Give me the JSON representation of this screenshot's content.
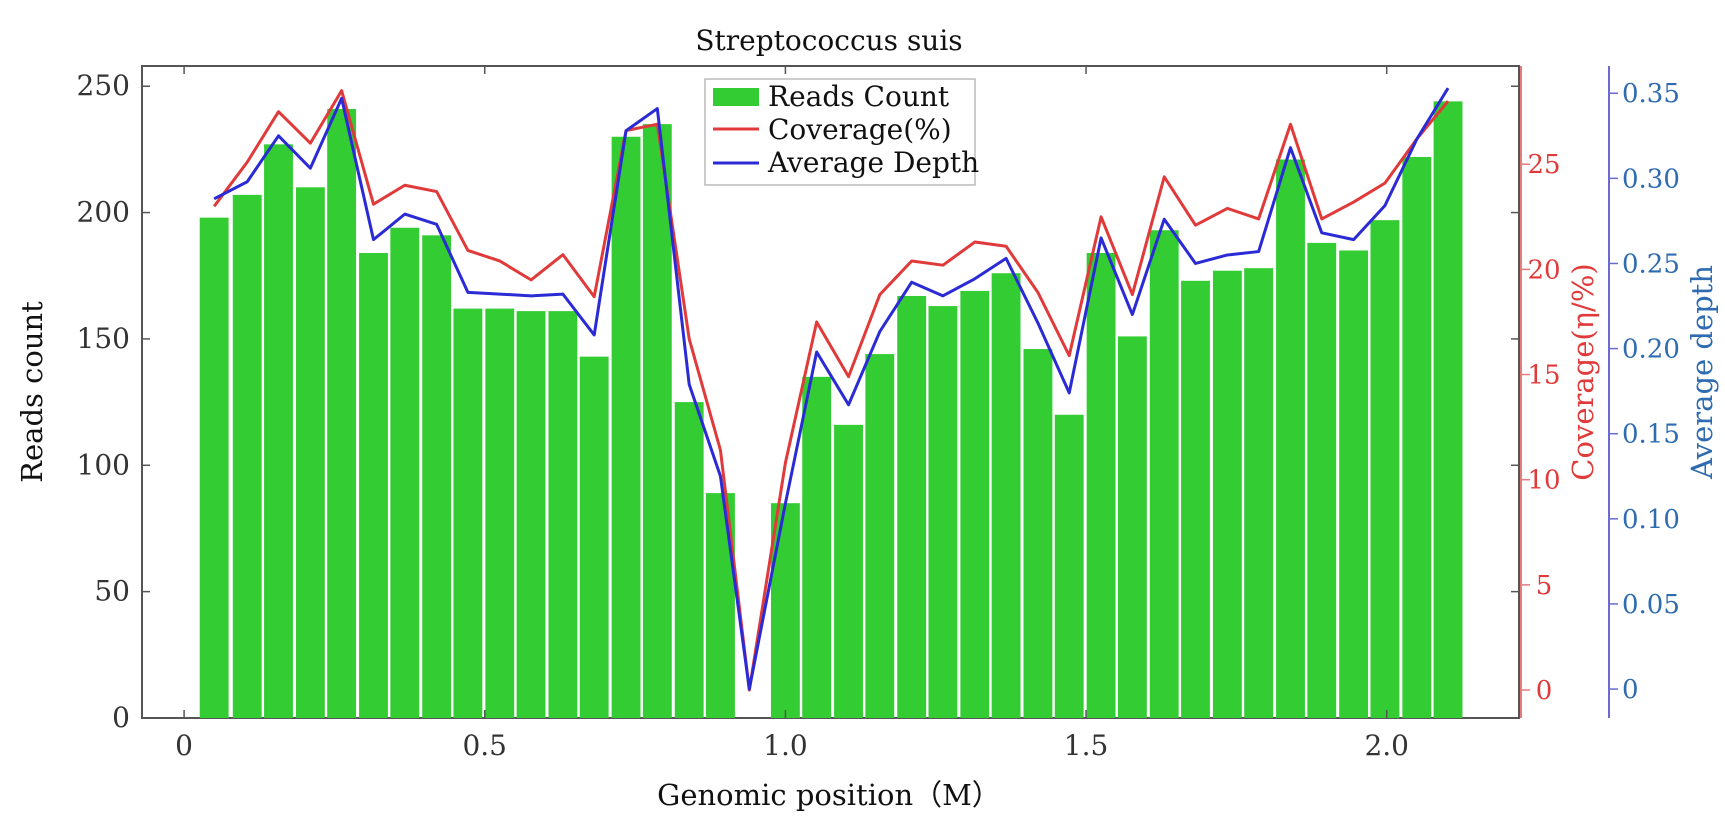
{
  "chart_data": {
    "type": "bar",
    "title": "Streptococcus suis",
    "xlabel": "Genomic position（M）",
    "ylabel": "Reads count",
    "y2label": "Coverage(η/%)",
    "y3label": "Average depth",
    "xlim": [
      -0.07,
      2.22
    ],
    "ylim": [
      0,
      258
    ],
    "y2lim": [
      -1.33,
      29.67
    ],
    "y3lim": [
      -0.017,
      0.366
    ],
    "xticks": [
      0,
      0.5,
      1.0,
      1.5,
      2.0
    ],
    "xtick_labels": [
      "0",
      "0.5",
      "1.0",
      "1.5",
      "2.0"
    ],
    "yticks": [
      0,
      50,
      100,
      150,
      200,
      250
    ],
    "y2ticks": [
      0,
      5,
      10,
      15,
      20,
      25
    ],
    "y3ticks": [
      0,
      0.05,
      0.1,
      0.15,
      0.2,
      0.25,
      0.3,
      0.35
    ],
    "y3tick_labels": [
      "0",
      "0.05",
      "0.10",
      "0.15",
      "0.20",
      "0.25",
      "0.30",
      "0.35"
    ],
    "bar_width": 0.048,
    "colors": {
      "bars": "#33cc33",
      "coverage": "#e03a3a",
      "depth": "#2b2bd6",
      "right_axis_cov": "#e87a7a",
      "right_axis_depth": "#6a6ad0"
    },
    "grid": false,
    "legend_position": "top-center",
    "legend": [
      "Reads Count",
      "Coverage(%)",
      "Average Depth"
    ],
    "bars": {
      "name": "Reads Count",
      "x": [
        0.05,
        0.105,
        0.157,
        0.21,
        0.262,
        0.315,
        0.367,
        0.42,
        0.472,
        0.525,
        0.577,
        0.63,
        0.682,
        0.735,
        0.787,
        0.84,
        0.892,
        1.0,
        1.052,
        1.105,
        1.157,
        1.21,
        1.262,
        1.315,
        1.367,
        1.42,
        1.472,
        1.525,
        1.577,
        1.63,
        1.682,
        1.735,
        1.787,
        1.84,
        1.892,
        1.945,
        1.997,
        2.05,
        2.102
      ],
      "values": [
        198,
        207,
        227,
        210,
        241,
        184,
        194,
        191,
        162,
        162,
        161,
        161,
        143,
        230,
        235,
        125,
        89,
        85,
        135,
        116,
        144,
        167,
        163,
        169,
        176,
        146,
        120,
        184,
        151,
        193,
        173,
        177,
        178,
        221,
        188,
        185,
        197,
        222,
        244
      ]
    },
    "series": [
      {
        "name": "Coverage(%)",
        "axis": "coverage",
        "x": [
          0.05,
          0.105,
          0.157,
          0.21,
          0.262,
          0.315,
          0.367,
          0.42,
          0.472,
          0.525,
          0.577,
          0.63,
          0.682,
          0.735,
          0.787,
          0.84,
          0.892,
          0.94,
          1.0,
          1.052,
          1.105,
          1.157,
          1.21,
          1.262,
          1.315,
          1.367,
          1.42,
          1.472,
          1.525,
          1.577,
          1.63,
          1.682,
          1.735,
          1.787,
          1.84,
          1.892,
          1.945,
          1.997,
          2.05,
          2.102
        ],
        "values": [
          23.0,
          25.1,
          27.5,
          26.0,
          28.5,
          23.1,
          24.0,
          23.7,
          20.9,
          20.4,
          19.5,
          20.7,
          18.7,
          26.6,
          26.9,
          16.7,
          11.4,
          0.0,
          10.8,
          17.5,
          14.9,
          18.8,
          20.4,
          20.2,
          21.3,
          21.1,
          18.9,
          15.9,
          22.5,
          18.8,
          24.4,
          22.1,
          22.9,
          22.4,
          26.9,
          22.4,
          23.2,
          24.1,
          26.2,
          28.0
        ]
      },
      {
        "name": "Average Depth",
        "axis": "depth",
        "x": [
          0.05,
          0.105,
          0.157,
          0.21,
          0.262,
          0.315,
          0.367,
          0.42,
          0.472,
          0.525,
          0.577,
          0.63,
          0.682,
          0.735,
          0.787,
          0.84,
          0.892,
          0.94,
          1.0,
          1.052,
          1.105,
          1.157,
          1.21,
          1.262,
          1.315,
          1.367,
          1.42,
          1.472,
          1.525,
          1.577,
          1.63,
          1.682,
          1.735,
          1.787,
          1.84,
          1.892,
          1.945,
          1.997,
          2.05,
          2.102
        ],
        "values": [
          0.288,
          0.298,
          0.325,
          0.306,
          0.347,
          0.264,
          0.279,
          0.273,
          0.233,
          0.232,
          0.231,
          0.232,
          0.208,
          0.328,
          0.341,
          0.179,
          0.125,
          0.0,
          0.109,
          0.198,
          0.167,
          0.21,
          0.239,
          0.231,
          0.241,
          0.253,
          0.215,
          0.174,
          0.265,
          0.22,
          0.276,
          0.25,
          0.255,
          0.257,
          0.318,
          0.268,
          0.264,
          0.284,
          0.323,
          0.353
        ]
      }
    ]
  }
}
